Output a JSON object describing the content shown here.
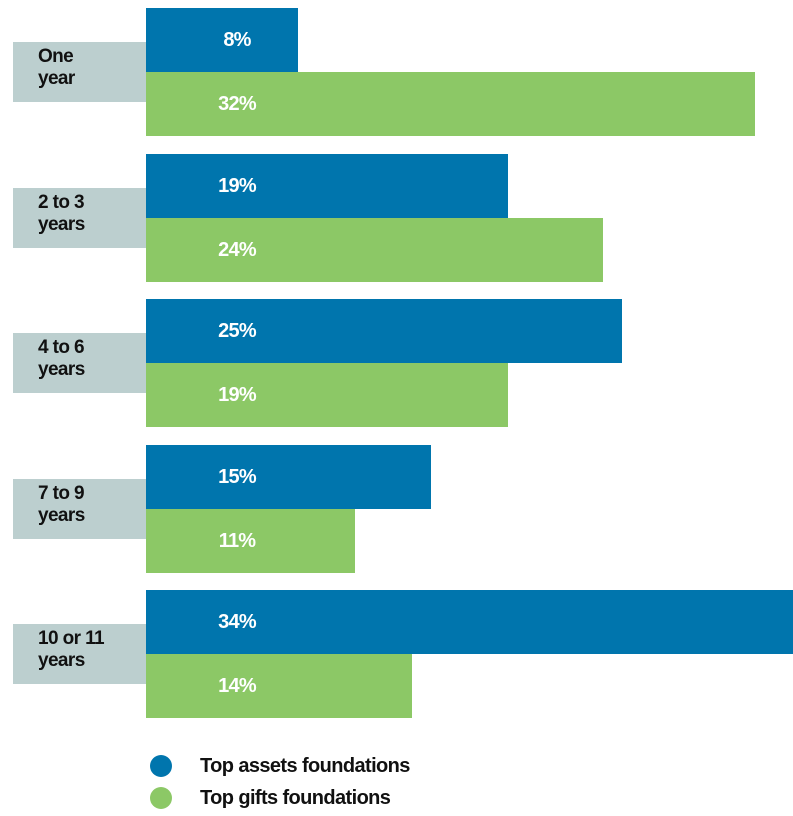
{
  "chart_data": {
    "type": "bar",
    "orientation": "horizontal",
    "categories": [
      [
        "One",
        "year"
      ],
      [
        "2 to 3",
        "years"
      ],
      [
        "4 to 6",
        "years"
      ],
      [
        "7 to 9",
        "years"
      ],
      [
        "10 or 11",
        "years"
      ]
    ],
    "series": [
      {
        "name": "Top assets foundations",
        "values": [
          8,
          19,
          25,
          15,
          34
        ],
        "color": "#0075ad"
      },
      {
        "name": "Top gifts foundations",
        "values": [
          32,
          24,
          19,
          11,
          14
        ],
        "color": "#8cc866"
      }
    ],
    "value_suffix": "%",
    "xlim": [
      0,
      34
    ],
    "grid": false,
    "legend_position": "bottom-left"
  }
}
